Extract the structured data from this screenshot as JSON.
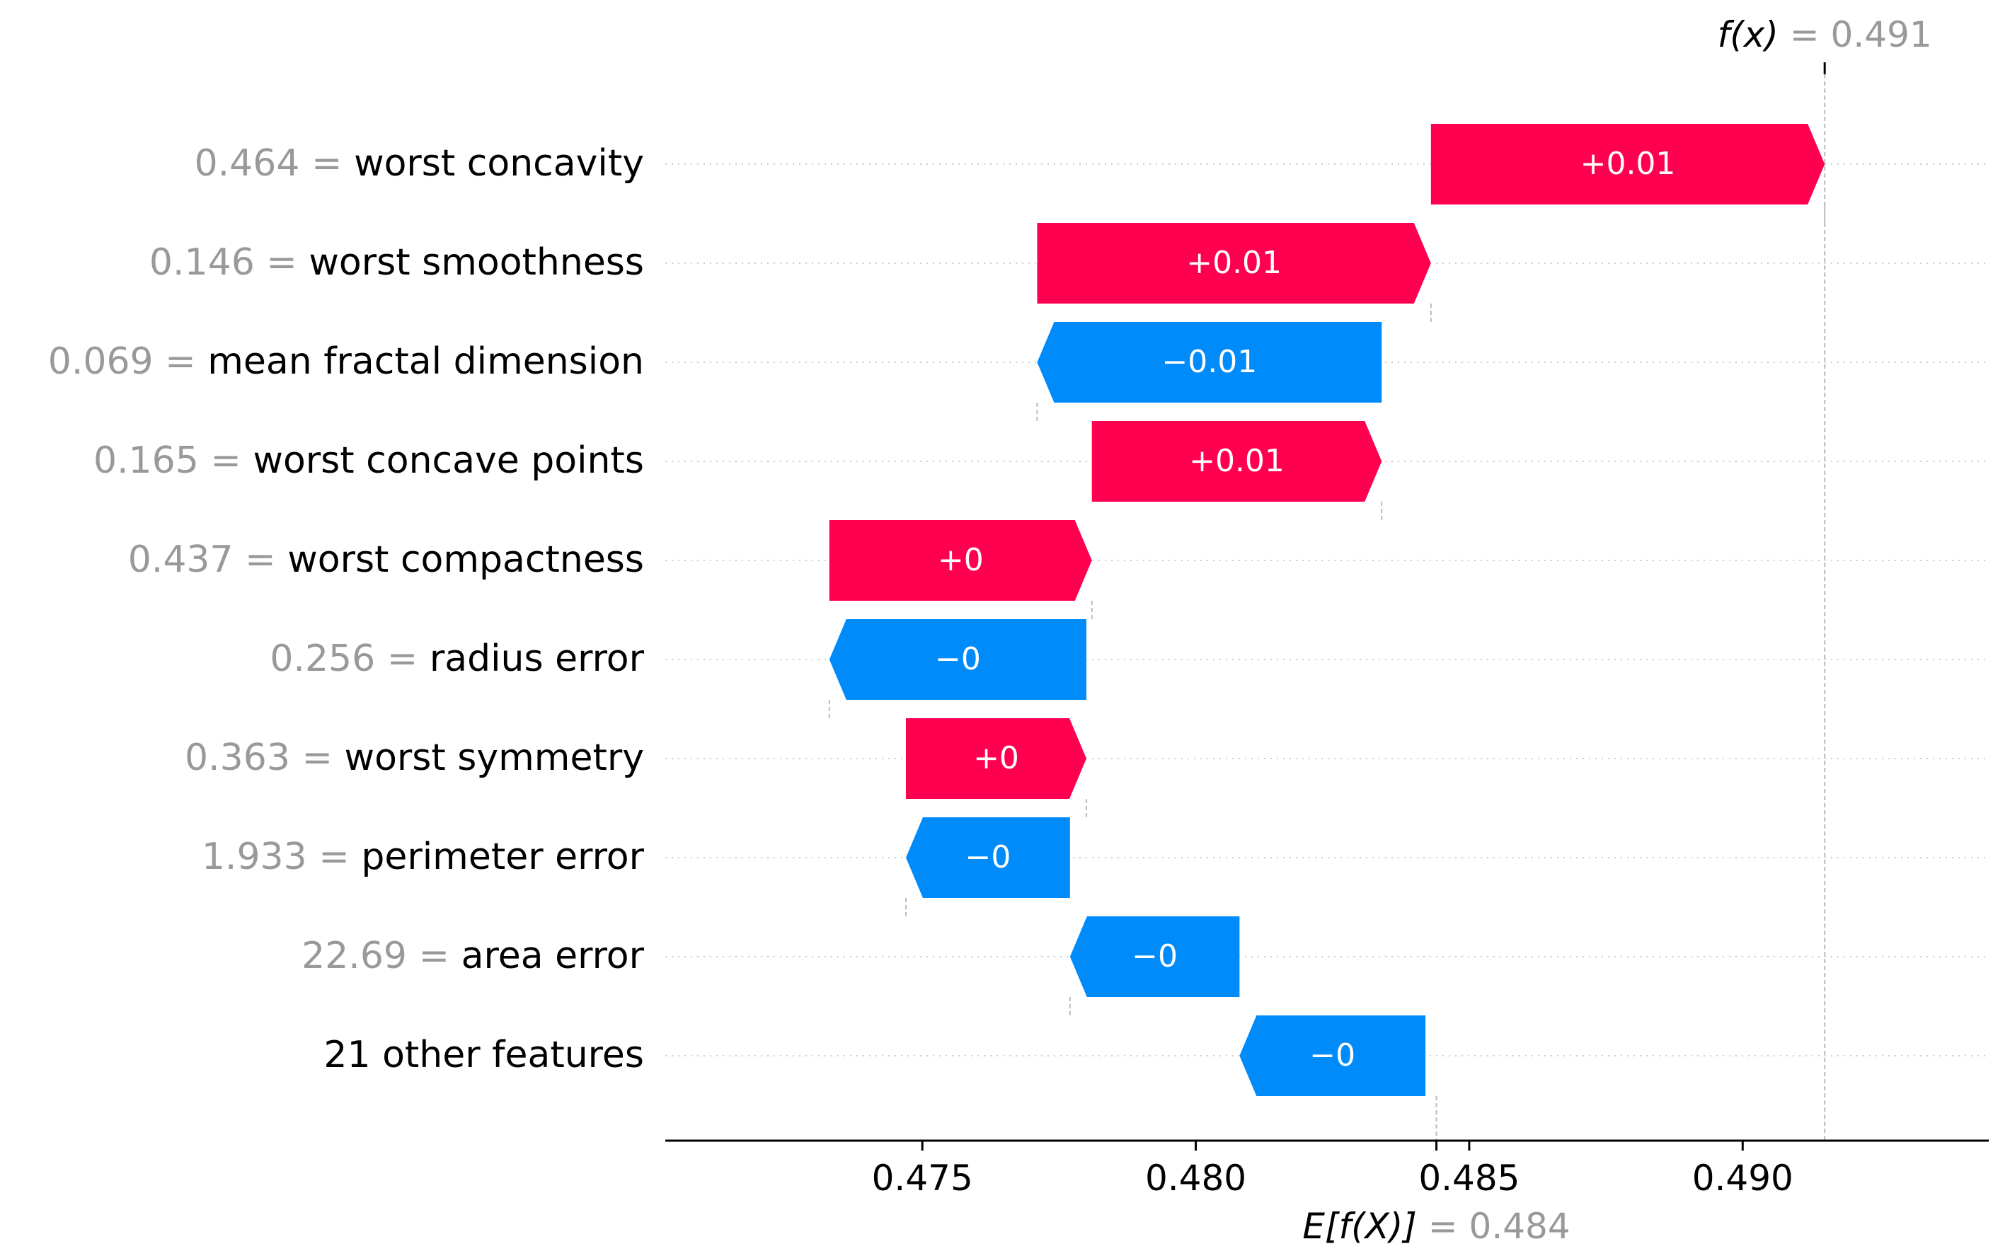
{
  "chart_data": {
    "type": "waterfall",
    "title": "",
    "xlabel": "",
    "ylabel": "",
    "xlim": [
      0.4703,
      0.4945
    ],
    "x_ticks": [
      0.475,
      0.48,
      0.485,
      0.49
    ],
    "x_tick_labels": [
      "0.475",
      "0.480",
      "0.485",
      "0.490"
    ],
    "base_value": 0.4844,
    "base_label_main": "E[f(X)]",
    "base_label_value": "= 0.484",
    "output_value": 0.4915,
    "output_label_main": "f(x)",
    "output_label_value": "= 0.491",
    "grid": true,
    "colors": {
      "positive": "#ff0051",
      "negative": "#008bfb",
      "value_text": "#999999",
      "label_text": "#000000"
    },
    "features": [
      {
        "value": "0.464",
        "sep": "=",
        "name": "worst concavity",
        "start": 0.4843,
        "end": 0.4915,
        "label": "+0.01"
      },
      {
        "value": "0.146",
        "sep": "=",
        "name": "worst smoothness",
        "start": 0.4771,
        "end": 0.4843,
        "label": "+0.01"
      },
      {
        "value": "0.069",
        "sep": "=",
        "name": "mean fractal dimension",
        "start": 0.4834,
        "end": 0.4771,
        "label": "−0.01"
      },
      {
        "value": "0.165",
        "sep": "=",
        "name": "worst concave points",
        "start": 0.4781,
        "end": 0.4834,
        "label": "+0.01"
      },
      {
        "value": "0.437",
        "sep": "=",
        "name": "worst compactness",
        "start": 0.4733,
        "end": 0.4781,
        "label": "+0"
      },
      {
        "value": "0.256",
        "sep": "=",
        "name": "radius error",
        "start": 0.478,
        "end": 0.4733,
        "label": "−0"
      },
      {
        "value": "0.363",
        "sep": "=",
        "name": "worst symmetry",
        "start": 0.4747,
        "end": 0.478,
        "label": "+0"
      },
      {
        "value": "1.933",
        "sep": "=",
        "name": "perimeter error",
        "start": 0.4777,
        "end": 0.4747,
        "label": "−0"
      },
      {
        "value": "22.69",
        "sep": "=",
        "name": "area error",
        "start": 0.4808,
        "end": 0.4777,
        "label": "−0"
      },
      {
        "value": "",
        "sep": "",
        "name": "21 other features",
        "start": 0.4842,
        "end": 0.4808,
        "label": "−0"
      }
    ]
  }
}
